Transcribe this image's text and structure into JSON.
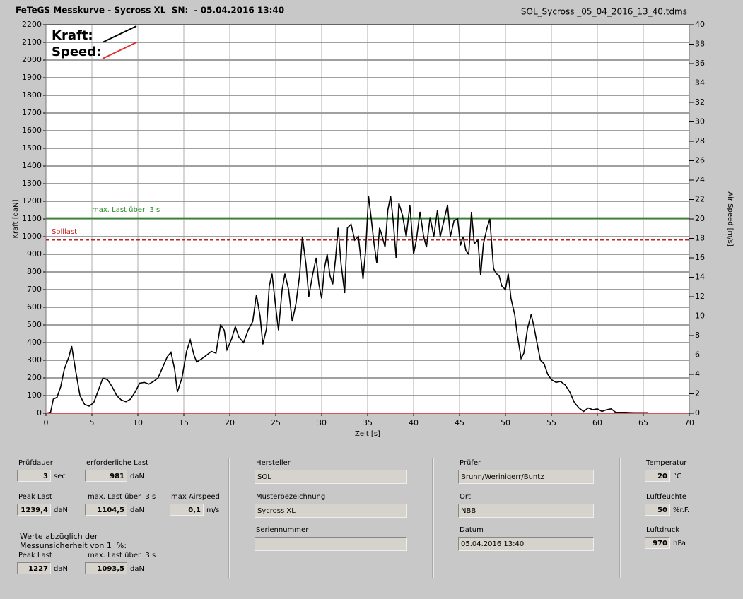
{
  "header": {
    "title": "FeTeGS Messkurve - Sycross XL  SN:  - 05.04.2016 13:40",
    "file": "SOL_Sycross _05_04_2016_13_40.tdms"
  },
  "chart_data": {
    "type": "line",
    "xlabel": "Zeit [s]",
    "ylabel": "Kraft [daN]",
    "y2label": "Air Speed [m/s]",
    "xlim": [
      0,
      70
    ],
    "xticks": [
      0,
      5,
      10,
      15,
      20,
      25,
      30,
      35,
      40,
      45,
      50,
      55,
      60,
      65,
      70
    ],
    "ylim": [
      0,
      2200
    ],
    "yticks": [
      0,
      100,
      200,
      300,
      400,
      500,
      600,
      700,
      800,
      900,
      1000,
      1100,
      1200,
      1300,
      1400,
      1500,
      1600,
      1700,
      1800,
      1900,
      2000,
      2100,
      2200
    ],
    "y2lim": [
      0,
      40
    ],
    "y2ticks": [
      0,
      2,
      4,
      6,
      8,
      10,
      12,
      14,
      16,
      18,
      20,
      22,
      24,
      26,
      28,
      30,
      32,
      34,
      36,
      38,
      40
    ],
    "grid": true,
    "series": [
      {
        "name": "Kraft:",
        "color": "#000000",
        "x": [
          0,
          0.5,
          0.8,
          1.2,
          1.6,
          2,
          2.5,
          2.8,
          3.2,
          3.7,
          4.2,
          4.7,
          5.2,
          5.7,
          6.2,
          6.7,
          7.2,
          7.7,
          8.2,
          8.7,
          9.2,
          9.7,
          10.2,
          10.7,
          11.2,
          11.7,
          12.2,
          12.7,
          13.2,
          13.6,
          14,
          14.3,
          14.8,
          15.3,
          15.7,
          16.1,
          16.4,
          17,
          17.5,
          18,
          18.5,
          19,
          19.4,
          19.7,
          20.2,
          20.6,
          21,
          21.5,
          22,
          22.5,
          22.9,
          23.3,
          23.6,
          24,
          24.3,
          24.6,
          25,
          25.3,
          25.7,
          26,
          26.4,
          26.8,
          27.2,
          27.6,
          27.9,
          28.3,
          28.6,
          29,
          29.4,
          29.7,
          30,
          30.3,
          30.6,
          30.9,
          31.2,
          31.5,
          31.8,
          32.1,
          32.5,
          32.8,
          33.2,
          33.6,
          34,
          34.5,
          34.8,
          35.1,
          35.4,
          35.7,
          36,
          36.3,
          36.6,
          36.9,
          37.2,
          37.5,
          37.8,
          38.1,
          38.4,
          38.8,
          39.2,
          39.6,
          40,
          40.3,
          40.7,
          41.1,
          41.4,
          41.8,
          42.2,
          42.6,
          42.9,
          43.3,
          43.7,
          44,
          44.4,
          44.8,
          45.1,
          45.4,
          45.7,
          46,
          46.3,
          46.6,
          47,
          47.3,
          47.6,
          48,
          48.3,
          48.7,
          49,
          49.3,
          49.6,
          50,
          50.3,
          50.6,
          51,
          51.3,
          51.7,
          52,
          52.4,
          52.8,
          53.1,
          53.5,
          53.8,
          54.2,
          54.6,
          55,
          55.5,
          56,
          56.5,
          57,
          57.5,
          58,
          58.5,
          59,
          59.5,
          60,
          60.5,
          61,
          61.5,
          62,
          63,
          64,
          65.5
        ],
        "values": [
          0,
          5,
          80,
          90,
          150,
          250,
          320,
          380,
          250,
          100,
          50,
          40,
          60,
          130,
          200,
          190,
          150,
          100,
          75,
          65,
          80,
          120,
          170,
          175,
          165,
          180,
          200,
          260,
          320,
          345,
          250,
          120,
          200,
          350,
          415,
          330,
          290,
          310,
          330,
          350,
          340,
          500,
          470,
          360,
          420,
          490,
          430,
          400,
          470,
          520,
          670,
          550,
          390,
          480,
          720,
          790,
          600,
          470,
          700,
          790,
          700,
          520,
          620,
          780,
          1000,
          840,
          660,
          780,
          880,
          730,
          650,
          820,
          900,
          780,
          730,
          870,
          1050,
          850,
          680,
          1050,
          1070,
          980,
          1000,
          760,
          930,
          1230,
          1100,
          960,
          850,
          1050,
          1000,
          940,
          1150,
          1230,
          1080,
          880,
          1190,
          1120,
          1000,
          1180,
          900,
          980,
          1140,
          1000,
          940,
          1110,
          1000,
          1150,
          1000,
          1090,
          1180,
          1000,
          1090,
          1100,
          950,
          1000,
          920,
          900,
          1140,
          960,
          980,
          780,
          960,
          1050,
          1100,
          820,
          790,
          780,
          720,
          700,
          790,
          650,
          560,
          440,
          310,
          340,
          480,
          560,
          490,
          380,
          300,
          280,
          220,
          190,
          175,
          180,
          160,
          120,
          60,
          30,
          10,
          30,
          20,
          25,
          10,
          20,
          25,
          5,
          5,
          3,
          3
        ]
      },
      {
        "name": "Speed:",
        "color": "#e03030",
        "axis": "y2",
        "x": [
          0,
          70
        ],
        "values": [
          0,
          0
        ]
      }
    ],
    "lines": [
      {
        "label": "max. Last über  3 s",
        "value": 1104.5,
        "color": "#2a8a2a",
        "dashed": false
      },
      {
        "label": "Solllast",
        "value": 981,
        "color": "#c02020",
        "dashed": true
      }
    ]
  },
  "fields": [
    {
      "label": "Prüfdauer",
      "value": "3",
      "unit": "sec"
    },
    {
      "label": "erforderliche Last",
      "value": "981",
      "unit": "daN"
    },
    {
      "label": "Peak Last",
      "value": "1239,4",
      "unit": "daN"
    },
    {
      "label": "max. Last über  3 s",
      "value": "1104,5",
      "unit": "daN"
    },
    {
      "label": "max Airspeed",
      "value": "0,1",
      "unit": "m/s"
    },
    {
      "label": "Peak Last",
      "value": "1227",
      "unit": "daN"
    },
    {
      "label": "max. Last über  3 s",
      "value": "1093,5",
      "unit": "daN"
    },
    {
      "label": "Hersteller",
      "value": "SOL"
    },
    {
      "label": "Musterbezeichnung",
      "value": "Sycross XL"
    },
    {
      "label": "Seriennummer"
    },
    {
      "label": "Prüfer",
      "value": "Brunn/Werinigerr/Buntz"
    },
    {
      "label": "Ort",
      "value": "NBB"
    },
    {
      "label": "Datum",
      "value": "05.04.2016 13:40"
    },
    {
      "label": "Temperatur",
      "value": "20",
      "unit": "°C"
    },
    {
      "label": "Luftfeuchte",
      "value": "50",
      "unit": "%r.F."
    },
    {
      "label": "Luftdruck",
      "value": "970",
      "unit": "hPa"
    }
  ],
  "note": "Werte abzüglich der\nMessunsicherheit von 1  %:"
}
